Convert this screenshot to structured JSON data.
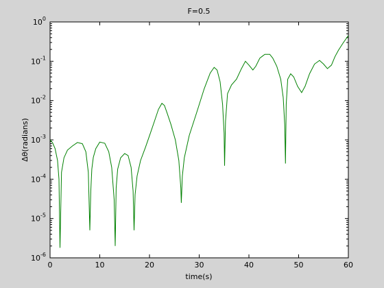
{
  "chart_data": {
    "type": "line",
    "title": "F=0.5",
    "xlabel": "time(s)",
    "ylabel": "Δθ(radians)",
    "xlim": [
      0,
      60
    ],
    "ylim": [
      1e-06,
      1
    ],
    "yscale": "log",
    "grid": false,
    "x_ticks": [
      0,
      10,
      20,
      30,
      40,
      50,
      60
    ],
    "x_tick_labels": [
      "0",
      "10",
      "20",
      "30",
      "40",
      "50",
      "60"
    ],
    "y_ticks": [
      1e-06,
      1e-05,
      0.0001,
      0.001,
      0.01,
      0.1,
      1
    ],
    "y_tick_bases": [
      "10",
      "10",
      "10",
      "10",
      "10",
      "10",
      "10"
    ],
    "y_tick_exponents": [
      "-6",
      "-5",
      "-4",
      "-3",
      "-2",
      "-1",
      "0"
    ],
    "series": [
      {
        "color": "#008000",
        "x": [
          0,
          0.5,
          1.0,
          1.5,
          1.8,
          2.0,
          2.3,
          2.8,
          3.5,
          4.5,
          5.5,
          6.5,
          7.2,
          7.7,
          8.0,
          8.2,
          8.4,
          8.7,
          9.2,
          10.0,
          11.0,
          11.8,
          12.4,
          12.9,
          13.1,
          13.3,
          13.6,
          14.2,
          15.0,
          15.7,
          16.3,
          16.7,
          16.9,
          17.1,
          17.5,
          18.2,
          19.2,
          20.2,
          21.0,
          21.8,
          22.5,
          23.0,
          23.5,
          24.3,
          25.2,
          25.9,
          26.3,
          26.4,
          26.6,
          27.0,
          28.0,
          29.5,
          31.0,
          32.2,
          33.0,
          33.6,
          34.2,
          34.7,
          35.0,
          35.1,
          35.3,
          35.7,
          36.5,
          37.5,
          38.5,
          39.3,
          40.0,
          40.8,
          41.4,
          42.2,
          43.2,
          44.2,
          44.8,
          45.6,
          46.4,
          46.9,
          47.2,
          47.35,
          47.5,
          47.8,
          48.4,
          49.0,
          49.8,
          50.6,
          51.3,
          52.2,
          53.2,
          54.2,
          55.0,
          55.8,
          56.6,
          57.3,
          58.0,
          59.0,
          60.0
        ],
        "y": [
          0.001,
          0.00085,
          0.0006,
          0.0003,
          0.0001,
          1.8e-06,
          0.00015,
          0.00035,
          0.00055,
          0.0007,
          0.00086,
          0.0008,
          0.0005,
          0.00015,
          5e-06,
          5e-05,
          0.00018,
          0.00036,
          0.0006,
          0.00088,
          0.00082,
          0.0005,
          0.0002,
          3e-05,
          2e-06,
          6e-05,
          0.00018,
          0.00035,
          0.00045,
          0.0004,
          0.0002,
          5e-05,
          5e-06,
          4e-05,
          0.00012,
          0.0003,
          0.00065,
          0.0015,
          0.003,
          0.006,
          0.0085,
          0.0075,
          0.005,
          0.0025,
          0.001,
          0.0003,
          6e-05,
          2.5e-05,
          0.00012,
          0.00035,
          0.0013,
          0.005,
          0.02,
          0.05,
          0.07,
          0.06,
          0.03,
          0.008,
          0.0015,
          0.00022,
          0.003,
          0.015,
          0.025,
          0.035,
          0.065,
          0.1,
          0.08,
          0.06,
          0.075,
          0.12,
          0.15,
          0.15,
          0.12,
          0.075,
          0.035,
          0.012,
          0.0025,
          0.00025,
          0.008,
          0.035,
          0.048,
          0.04,
          0.023,
          0.016,
          0.023,
          0.048,
          0.085,
          0.105,
          0.085,
          0.065,
          0.08,
          0.13,
          0.19,
          0.3,
          0.45
        ]
      }
    ]
  }
}
